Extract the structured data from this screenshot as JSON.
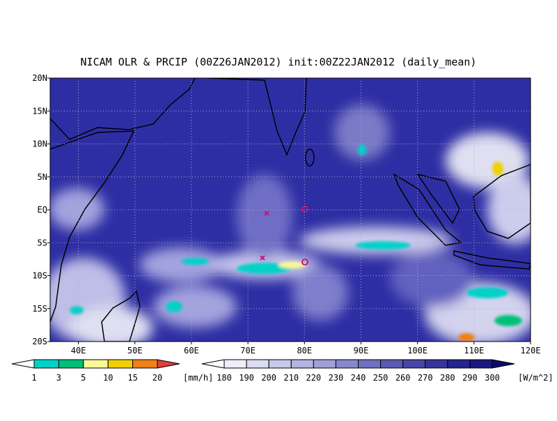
{
  "title": "NICAM OLR & PRCIP (00Z26JAN2012) init:00Z22JAN2012 (daily_mean)",
  "map": {
    "lat_labels": [
      "20N",
      "15N",
      "10N",
      "5N",
      "EQ",
      "5S",
      "10S",
      "15S",
      "20S"
    ],
    "lon_labels": [
      "40E",
      "50E",
      "60E",
      "70E",
      "80E",
      "90E",
      "100E",
      "110E",
      "120E"
    ]
  },
  "precip_colorbar": {
    "labels": [
      "1",
      "3",
      "5",
      "10",
      "15",
      "20"
    ],
    "unit": "[mm/h]",
    "colors": [
      "#ffffff",
      "#00d2c8",
      "#00c078",
      "#f8f898",
      "#f0d000",
      "#f08018",
      "#e83c3c"
    ]
  },
  "olr_colorbar": {
    "labels": [
      "180",
      "190",
      "200",
      "210",
      "220",
      "230",
      "240",
      "250",
      "260",
      "270",
      "280",
      "290",
      "300"
    ],
    "unit": "[W/m^2]",
    "colors": [
      "#ffffff",
      "#eeeefa",
      "#dcdcf2",
      "#c8c8ea",
      "#b4b4e0",
      "#a0a0d6",
      "#8888cc",
      "#7070c0",
      "#5a5ab4",
      "#4646a8",
      "#34349c",
      "#24248e",
      "#181880",
      "#0c0c70"
    ]
  }
}
